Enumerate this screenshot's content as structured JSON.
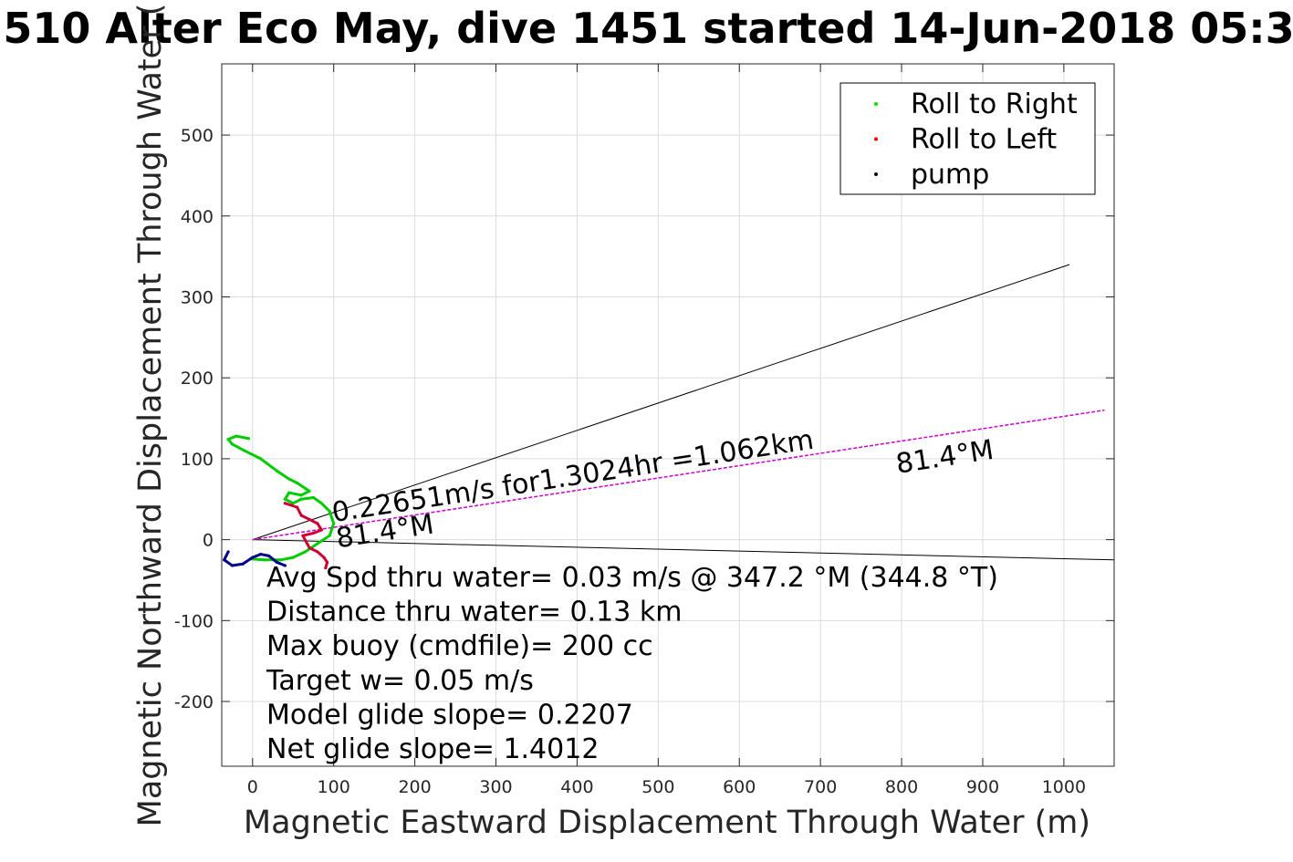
{
  "chart_data": {
    "type": "line",
    "title": "510 Alter Eco May, dive 1451 started 14-Jun-2018 05:3",
    "xlabel": "Magnetic Eastward Displacement Through Water (m)",
    "ylabel": "Magnetic Northward Displacement Through Water (",
    "xlim": [
      -38,
      1062
    ],
    "ylim": [
      -280,
      588
    ],
    "xticks": [
      0,
      100,
      200,
      300,
      400,
      500,
      600,
      700,
      800,
      900,
      1000
    ],
    "xtick_labels": [
      "0",
      "100",
      "200",
      "300",
      "400",
      "500",
      "600",
      "700",
      "800",
      "900",
      "1000"
    ],
    "yticks": [
      -200,
      -100,
      0,
      100,
      200,
      300,
      400,
      500
    ],
    "ytick_labels": [
      "-200",
      "-100",
      "0",
      "100",
      "200",
      "300",
      "400",
      "500"
    ],
    "grid": true,
    "legend": {
      "placement": "top-right",
      "entries": [
        {
          "name": "Roll to Right",
          "color": "#00dd00"
        },
        {
          "name": "Roll to Left",
          "color": "#ff0000"
        },
        {
          "name": "pump",
          "color": "#000000"
        }
      ]
    },
    "series": [
      {
        "name": "Roll to Right",
        "color": "#00cc00",
        "x": [
          -5,
          -20,
          -30,
          -25,
          -10,
          10,
          30,
          45,
          55,
          70,
          60,
          45,
          40,
          50,
          60,
          75,
          85,
          95,
          100,
          95,
          80,
          65,
          50,
          35,
          15,
          0
        ],
        "y": [
          125,
          128,
          124,
          118,
          110,
          100,
          85,
          75,
          70,
          60,
          55,
          58,
          50,
          45,
          50,
          52,
          45,
          35,
          20,
          5,
          -5,
          -15,
          -22,
          -25,
          -25,
          -24
        ]
      },
      {
        "name": "Roll to Left",
        "color": "#cc0033",
        "x": [
          40,
          55,
          60,
          70,
          80,
          85,
          75,
          62,
          70,
          80,
          88,
          92,
          90
        ],
        "y": [
          45,
          40,
          30,
          25,
          20,
          12,
          8,
          5,
          -10,
          -15,
          -22,
          -28,
          -35
        ]
      },
      {
        "name": "pump",
        "color": "#00008b",
        "x": [
          -30,
          -35,
          -25,
          -12,
          0,
          10,
          20,
          30,
          40
        ],
        "y": [
          -15,
          -25,
          -32,
          -30,
          -22,
          -18,
          -20,
          -28,
          -32
        ]
      }
    ],
    "reference_lines": [
      {
        "label": "",
        "color": "#000000",
        "x": [
          0,
          1007
        ],
        "y": [
          0,
          340
        ]
      },
      {
        "label": "",
        "color": "#000000",
        "x": [
          0,
          1062
        ],
        "y": [
          0,
          -25
        ]
      },
      {
        "label": "81.4°M",
        "color": "#cc00cc",
        "x": [
          0,
          1050
        ],
        "y": [
          0,
          160
        ]
      }
    ],
    "annotations": [
      {
        "text": "0.22651m/s for1.3024hr =1.062km",
        "x": 100,
        "y": 22
      },
      {
        "text": "81.4°M",
        "x": 105,
        "y": -10
      },
      {
        "text": "81.4°M",
        "x": 795,
        "y": 82
      }
    ],
    "stats": [
      "Avg Spd thru water=  0.03 m/s @ 347.2 °M (344.8 °T)",
      "Distance thru water=  0.13 km",
      "Max buoy (cmdfile)= 200 cc",
      "Target w= 0.05 m/s",
      "Model glide slope= 0.2207",
      "Net glide slope= 1.4012"
    ]
  }
}
